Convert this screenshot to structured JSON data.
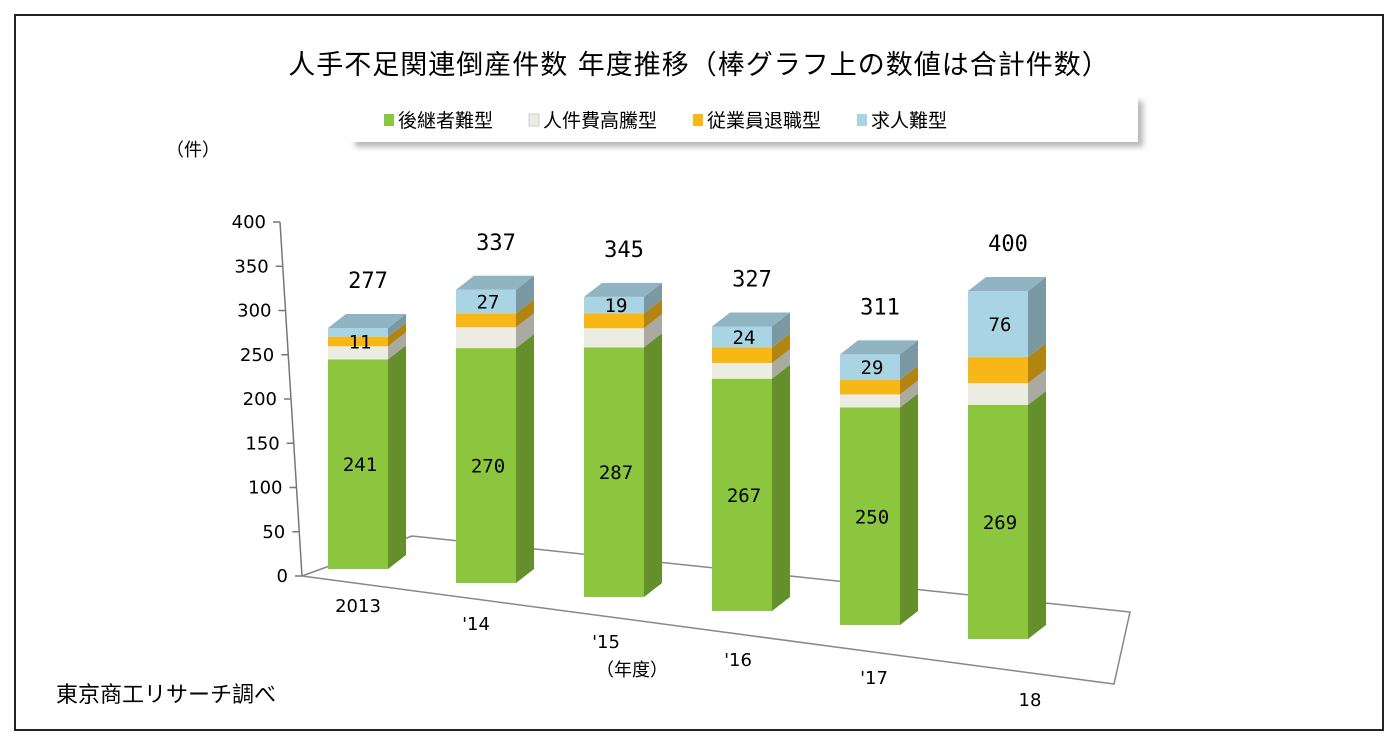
{
  "chart_data": {
    "type": "bar",
    "stacked": true,
    "three_d": true,
    "title": "人手不足関連倒産件数 年度推移（棒グラフ上の数値は合計件数）",
    "ylabel": "（件）",
    "xlabel": "（年度）",
    "ylim": [
      0,
      400
    ],
    "yticks": [
      0,
      50,
      100,
      150,
      200,
      250,
      300,
      350,
      400
    ],
    "categories": [
      "2013",
      "'14",
      "'15",
      "'16",
      "'17",
      "18"
    ],
    "totals": [
      277,
      337,
      345,
      327,
      311,
      400
    ],
    "legend_position": "top",
    "series": [
      {
        "name": "後継者難型",
        "color": "#8cc63f",
        "values": [
          241,
          270,
          287,
          267,
          250,
          269
        ]
      },
      {
        "name": "人件費高騰型",
        "color": "#ecece2",
        "values": [
          15,
          24,
          22,
          18,
          15,
          25
        ]
      },
      {
        "name": "従業員退職型",
        "color": "#f7b817",
        "values": [
          11,
          16,
          17,
          18,
          17,
          30
        ]
      },
      {
        "name": "求人難型",
        "color": "#a9d4e3",
        "values": [
          10,
          27,
          19,
          24,
          29,
          76
        ]
      }
    ],
    "value_labels": [
      [
        "241",
        "270",
        "287",
        "267",
        "250",
        "269"
      ],
      [
        "",
        "",
        "",
        "",
        "",
        ""
      ],
      [
        "11",
        "",
        "",
        "",
        "",
        ""
      ],
      [
        "",
        "27",
        "19",
        "24",
        "29",
        "76"
      ]
    ],
    "source_note": "東京商工リサーチ調べ"
  }
}
